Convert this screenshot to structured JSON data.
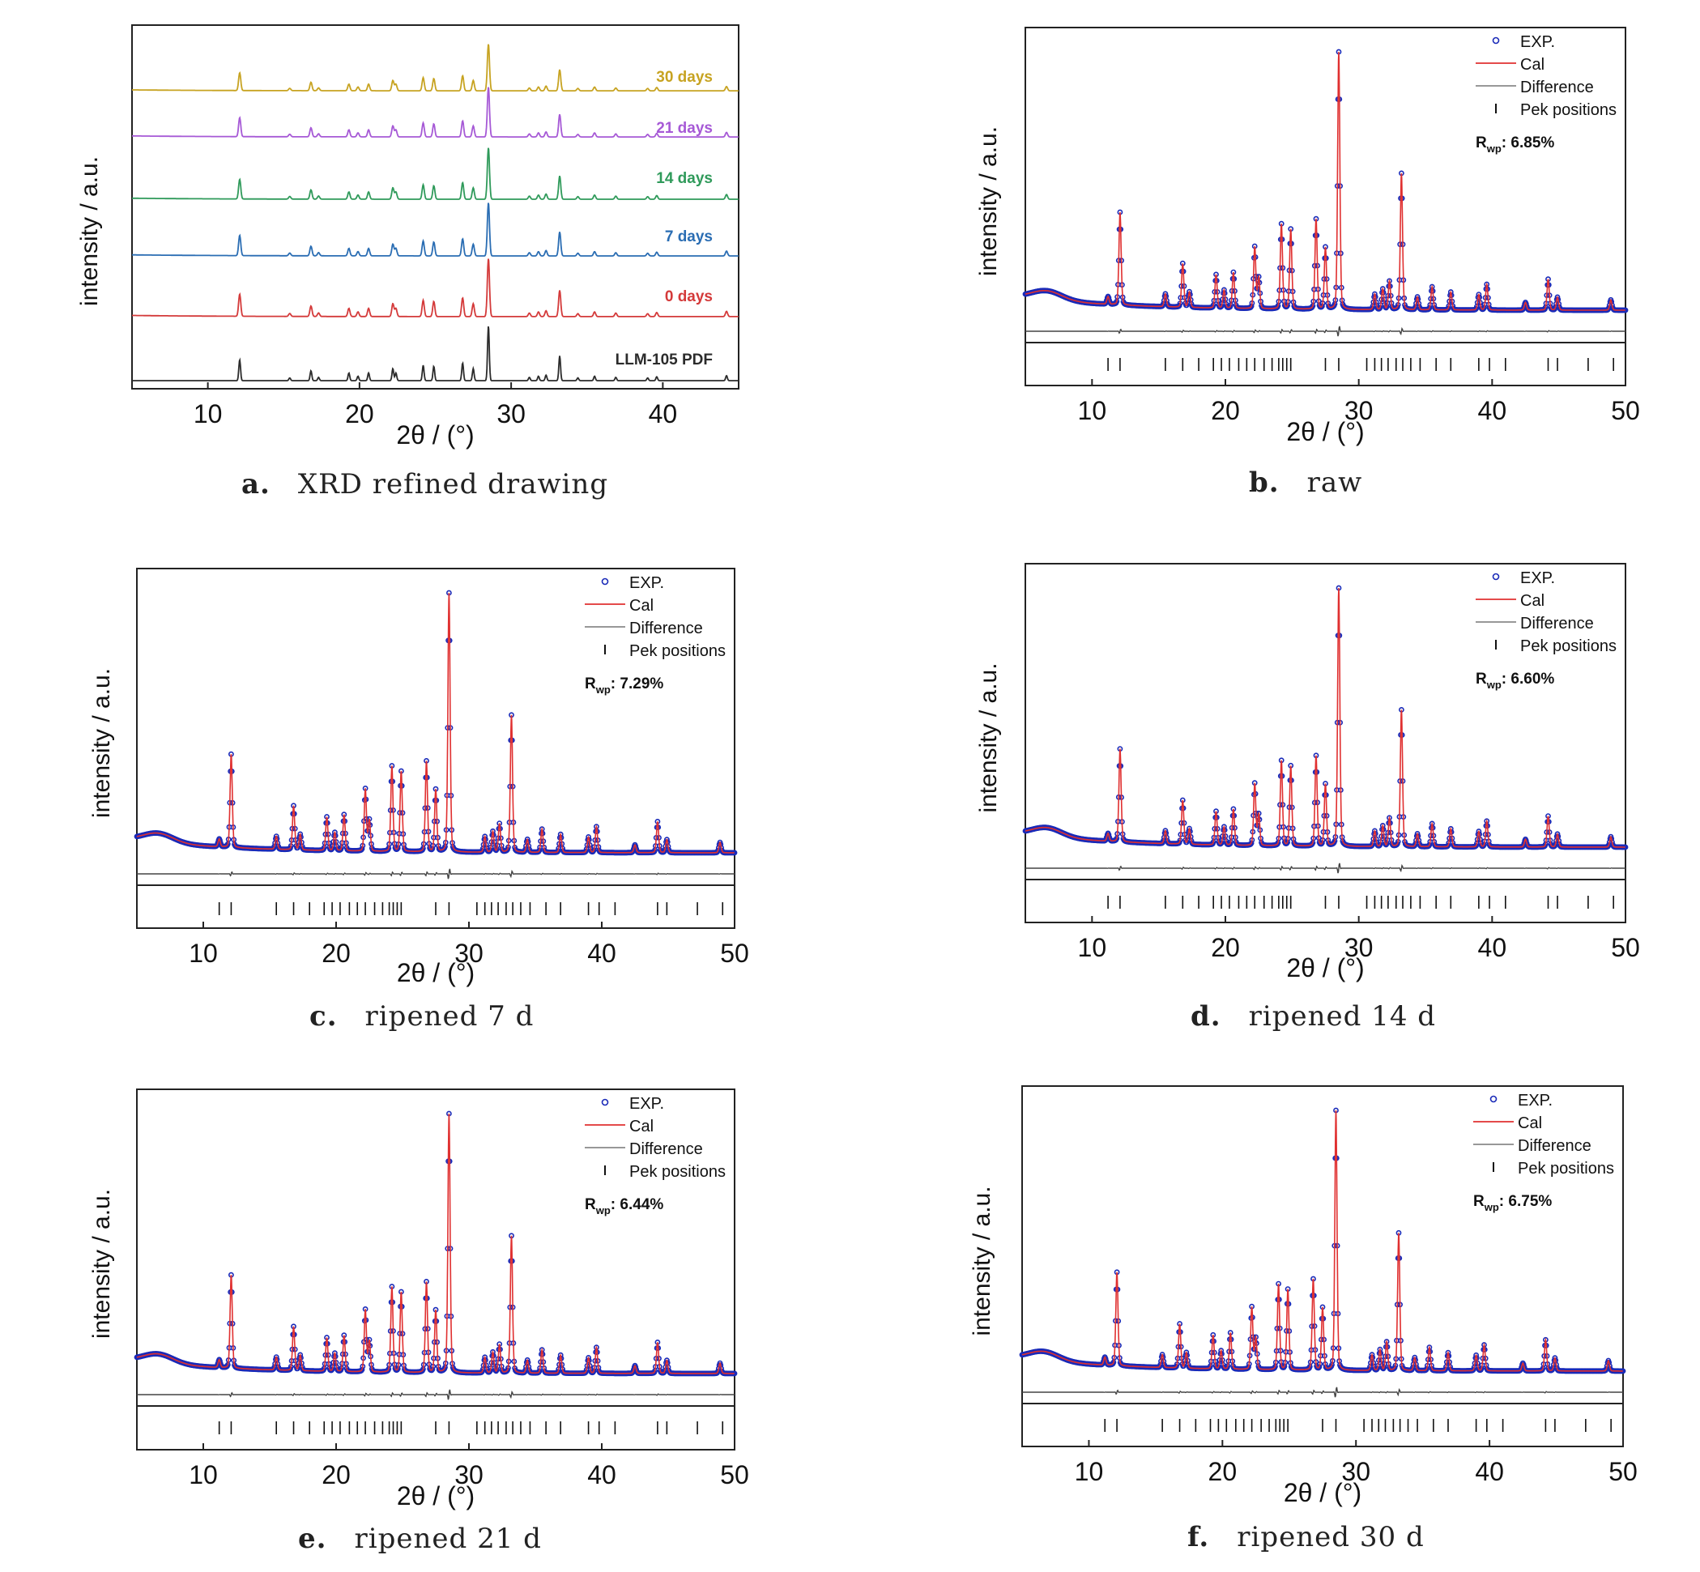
{
  "colors": {
    "exp_marker": "#1a2ab8",
    "cal_line": "#e03030",
    "difference": "#444444",
    "tick": "#111111",
    "axis": "#222222"
  },
  "chart_data": [
    {
      "id": "a",
      "type": "line",
      "xlabel": "2θ / (°)",
      "ylabel": "intensity / a.u.",
      "xlim": [
        5,
        45
      ],
      "xticks": [
        "10",
        "20",
        "30",
        "40"
      ],
      "caption_letter": "a.",
      "caption_text": "XRD refined drawing",
      "series": [
        {
          "name": "LLM-105 PDF",
          "color": "#2b2b2b"
        },
        {
          "name": "0 days",
          "color": "#d43a3a"
        },
        {
          "name": "7 days",
          "color": "#2a6db3"
        },
        {
          "name": "14 days",
          "color": "#2f9a5a"
        },
        {
          "name": "21 days",
          "color": "#a659d6"
        },
        {
          "name": "30 days",
          "color": "#c7a321"
        }
      ],
      "peaks": [
        [
          12.1,
          0.38
        ],
        [
          15.4,
          0.05
        ],
        [
          16.8,
          0.18
        ],
        [
          17.3,
          0.06
        ],
        [
          19.3,
          0.14
        ],
        [
          19.9,
          0.08
        ],
        [
          20.6,
          0.14
        ],
        [
          22.2,
          0.22
        ],
        [
          22.4,
          0.14
        ],
        [
          24.2,
          0.28
        ],
        [
          24.9,
          0.26
        ],
        [
          26.8,
          0.32
        ],
        [
          27.5,
          0.22
        ],
        [
          28.5,
          1.0
        ],
        [
          31.2,
          0.06
        ],
        [
          31.8,
          0.08
        ],
        [
          32.3,
          0.1
        ],
        [
          33.2,
          0.45
        ],
        [
          34.4,
          0.05
        ],
        [
          35.5,
          0.08
        ],
        [
          36.9,
          0.06
        ],
        [
          39.0,
          0.05
        ],
        [
          39.6,
          0.07
        ],
        [
          44.2,
          0.09
        ]
      ]
    },
    {
      "id": "b",
      "type": "scatter",
      "xlabel": "2θ / (°)",
      "ylabel": "intensity / a.u.",
      "xlim": [
        5,
        50
      ],
      "xticks": [
        "10",
        "20",
        "30",
        "40",
        "50"
      ],
      "legend": [
        "EXP.",
        "Cal",
        "Difference",
        "Pek positions"
      ],
      "rwp_label": "R",
      "rwp_sub": "wp",
      "rwp_value": ": 6.85%",
      "caption_letter": "b.",
      "caption_text": "raw",
      "peak_scale": 1.0
    },
    {
      "id": "c",
      "type": "scatter",
      "xlabel": "2θ / (°)",
      "ylabel": "intensity / a.u.",
      "xlim": [
        5,
        50
      ],
      "xticks": [
        "10",
        "20",
        "30",
        "40",
        "50"
      ],
      "legend": [
        "EXP.",
        "Cal",
        "Difference",
        "Pek positions"
      ],
      "rwp_label": "R",
      "rwp_sub": "wp",
      "rwp_value": ": 7.29%",
      "caption_letter": "c.",
      "caption_text": "ripened 7 d",
      "peak_scale": 1.0
    },
    {
      "id": "d",
      "type": "scatter",
      "xlabel": "2θ / (°)",
      "ylabel": "intensity / a.u.",
      "xlim": [
        5,
        50
      ],
      "xticks": [
        "10",
        "20",
        "30",
        "40",
        "50"
      ],
      "legend": [
        "EXP.",
        "Cal",
        "Difference",
        "Pek positions"
      ],
      "rwp_label": "R",
      "rwp_sub": "wp",
      "rwp_value": ": 6.60%",
      "caption_letter": "d.",
      "caption_text": "ripened 14 d",
      "peak_scale": 1.0
    },
    {
      "id": "e",
      "type": "scatter",
      "xlabel": "2θ / (°)",
      "ylabel": "intensity / a.u.",
      "xlim": [
        5,
        50
      ],
      "xticks": [
        "10",
        "20",
        "30",
        "40",
        "50"
      ],
      "legend": [
        "EXP.",
        "Cal",
        "Difference",
        "Pek positions"
      ],
      "rwp_label": "R",
      "rwp_sub": "wp",
      "rwp_value": ": 6.44%",
      "caption_letter": "e.",
      "caption_text": "ripened 21 d",
      "peak_scale": 1.0
    },
    {
      "id": "f",
      "type": "scatter",
      "xlabel": "2θ / (°)",
      "ylabel": "intensity / a.u.",
      "xlim": [
        5,
        50
      ],
      "xticks": [
        "10",
        "20",
        "30",
        "40",
        "50"
      ],
      "legend": [
        "EXP.",
        "Cal",
        "Difference",
        "Pek positions"
      ],
      "rwp_label": "R",
      "rwp_sub": "wp",
      "rwp_value": ": 6.75%",
      "caption_letter": "f.",
      "caption_text": "ripened 30 d",
      "peak_scale": 1.0
    }
  ],
  "refinement_peaks": [
    [
      11.2,
      0.03
    ],
    [
      12.1,
      0.36
    ],
    [
      15.5,
      0.05
    ],
    [
      16.8,
      0.17
    ],
    [
      17.3,
      0.06
    ],
    [
      19.3,
      0.13
    ],
    [
      19.9,
      0.07
    ],
    [
      20.6,
      0.14
    ],
    [
      22.2,
      0.24
    ],
    [
      22.5,
      0.12
    ],
    [
      24.2,
      0.33
    ],
    [
      24.9,
      0.31
    ],
    [
      26.8,
      0.35
    ],
    [
      27.5,
      0.24
    ],
    [
      28.5,
      1.0
    ],
    [
      31.2,
      0.06
    ],
    [
      31.8,
      0.08
    ],
    [
      32.3,
      0.11
    ],
    [
      33.2,
      0.53
    ],
    [
      34.4,
      0.05
    ],
    [
      35.5,
      0.09
    ],
    [
      36.9,
      0.07
    ],
    [
      39.0,
      0.06
    ],
    [
      39.6,
      0.1
    ],
    [
      42.5,
      0.03
    ],
    [
      44.2,
      0.12
    ],
    [
      44.9,
      0.05
    ],
    [
      48.9,
      0.04
    ]
  ],
  "reflection_positions": [
    11.2,
    12.1,
    15.5,
    16.8,
    18.0,
    19.1,
    19.7,
    20.3,
    21.0,
    21.6,
    22.2,
    22.9,
    23.5,
    24.0,
    24.3,
    24.6,
    24.9,
    27.5,
    28.5,
    30.6,
    31.2,
    31.7,
    32.2,
    32.8,
    33.3,
    33.9,
    34.6,
    35.8,
    36.9,
    39.0,
    39.8,
    41.0,
    44.2,
    44.9,
    47.2,
    49.1
  ]
}
